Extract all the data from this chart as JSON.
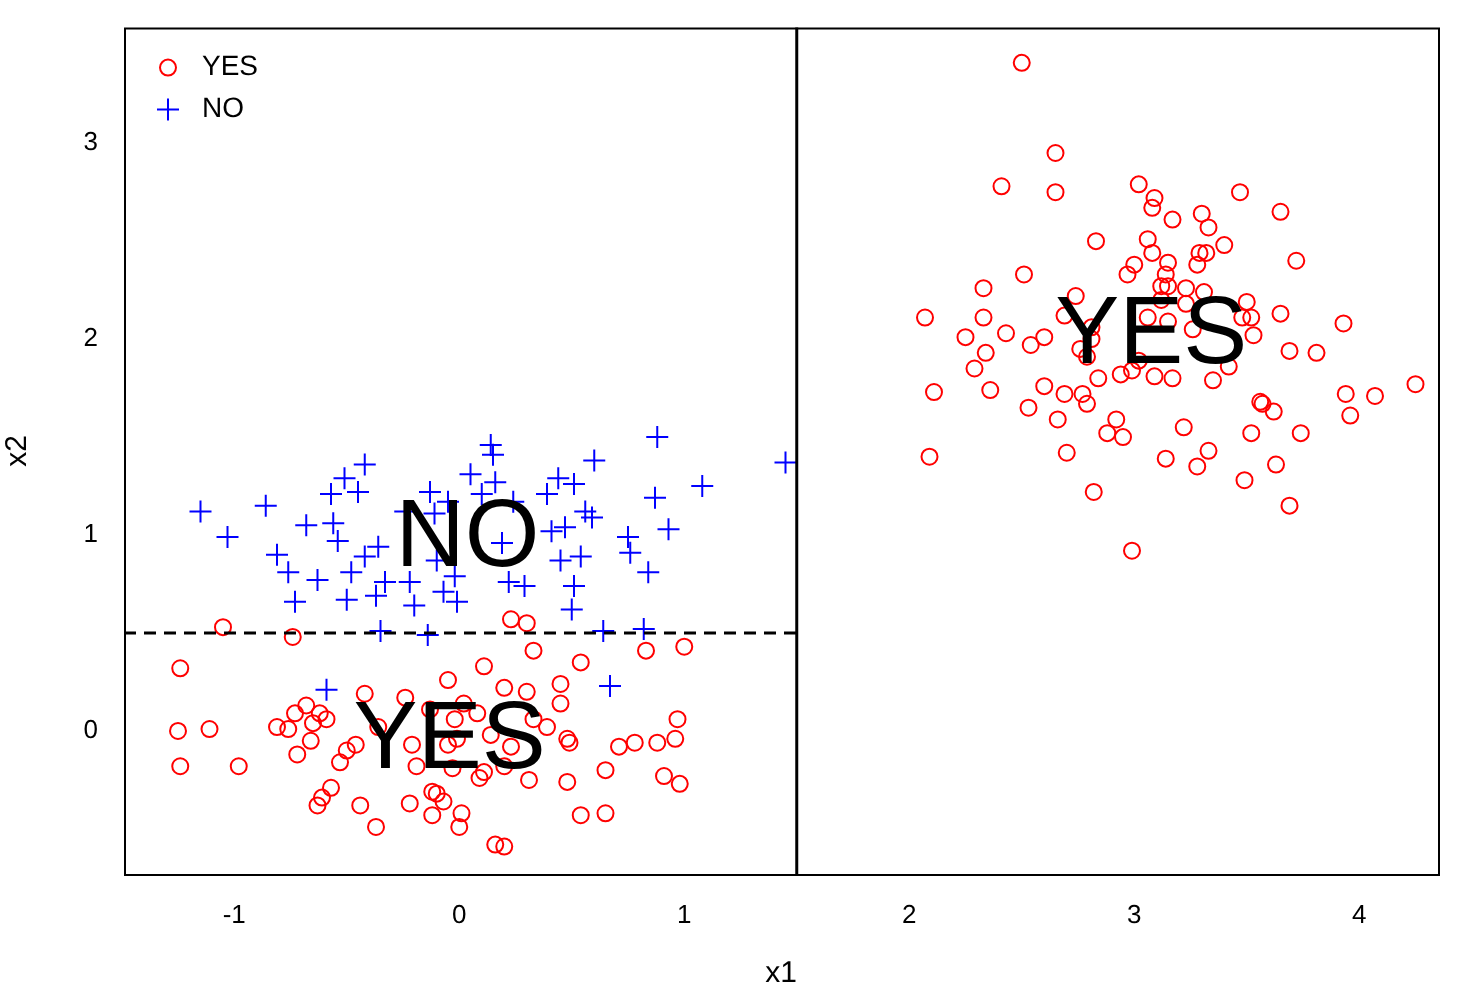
{
  "chart_data": {
    "type": "scatter",
    "xlabel": "x1",
    "ylabel": "x2",
    "xlim": [
      -1.49,
      4.35
    ],
    "ylim": [
      -0.73,
      3.59
    ],
    "xticks": [
      -1,
      0,
      1,
      2,
      3,
      4
    ],
    "yticks": [
      0,
      1,
      2,
      3
    ],
    "grid": false,
    "legend": "top left",
    "series": [
      {
        "name": "YES",
        "color": "#ff0000",
        "marker": "circle",
        "x": [
          -1.05,
          -0.74,
          0.23,
          0.3,
          0.33,
          0.54,
          0.83,
          1.0,
          -1.24,
          0.11,
          -0.05,
          0.2,
          0.45,
          0.3,
          0.45,
          -0.42,
          -0.24,
          -0.68,
          -0.62,
          -0.59,
          -0.73,
          -0.81,
          -0.76,
          -0.65,
          -1.25,
          -1.11,
          -0.36,
          -0.13,
          0.02,
          0.08,
          0.33,
          0.39,
          0.97,
          -0.02,
          0.14,
          -0.66,
          -0.72,
          -0.5,
          -0.46,
          -0.53,
          -0.21,
          -0.05,
          -0.01,
          0.23,
          0.48,
          0.49,
          0.71,
          0.78,
          0.88,
          0.96,
          -1.24,
          -0.98,
          -0.19,
          -0.03,
          0.11,
          0.09,
          0.2,
          0.31,
          0.48,
          0.65,
          0.91,
          0.98,
          -0.57,
          -0.61,
          -0.63,
          -0.44,
          -0.22,
          -0.12,
          -0.1,
          -0.07,
          -0.12,
          0.01,
          0.0,
          -0.37,
          0.54,
          0.65,
          0.16,
          0.2,
          2.5,
          2.65,
          2.41,
          2.65,
          3.02,
          3.09,
          3.08,
          3.17,
          3.3,
          3.33,
          3.47,
          3.65,
          2.83,
          3.06,
          3.08,
          3.29,
          3.32,
          3.28,
          3.4,
          3.72,
          3.0,
          2.97,
          3.15,
          3.14,
          3.12,
          3.15,
          3.12,
          3.23,
          3.31,
          3.23,
          3.5,
          2.51,
          2.33,
          2.74,
          2.07,
          2.33,
          3.65,
          3.48,
          3.52,
          3.93,
          2.69,
          3.06,
          3.15,
          3.26,
          3.53,
          2.25,
          2.43,
          2.6,
          2.54,
          2.81,
          2.81,
          2.76,
          2.79,
          2.34,
          2.29,
          3.02,
          2.99,
          2.94,
          2.84,
          3.09,
          3.17,
          3.35,
          3.42,
          3.69,
          3.81,
          2.11,
          2.36,
          2.6,
          2.69,
          2.77,
          2.79,
          2.53,
          2.66,
          2.92,
          2.88,
          2.95,
          3.22,
          3.56,
          3.57,
          3.62,
          3.52,
          3.74,
          3.94,
          3.96,
          4.07,
          4.25,
          2.09,
          2.7,
          3.14,
          3.33,
          3.28,
          3.63,
          3.49,
          3.69,
          2.82,
          2.99
        ],
        "values": [
          0.53,
          0.48,
          0.57,
          0.55,
          0.41,
          0.35,
          0.41,
          0.43,
          0.32,
          0.33,
          0.26,
          0.22,
          0.24,
          0.2,
          0.14,
          0.19,
          0.17,
          0.13,
          0.09,
          0.06,
          0.09,
          0.02,
          0.01,
          0.04,
          0.0,
          0.01,
          0.02,
          0.11,
          0.14,
          0.09,
          0.06,
          0.02,
          0.06,
          0.06,
          -0.02,
          -0.05,
          -0.12,
          -0.1,
          -0.07,
          -0.16,
          -0.07,
          -0.07,
          -0.04,
          -0.08,
          -0.04,
          -0.06,
          -0.08,
          -0.06,
          -0.06,
          -0.04,
          -0.18,
          -0.18,
          -0.18,
          -0.19,
          -0.21,
          -0.24,
          -0.18,
          -0.25,
          -0.26,
          -0.2,
          -0.23,
          -0.27,
          -0.29,
          -0.34,
          -0.38,
          -0.38,
          -0.37,
          -0.31,
          -0.32,
          -0.36,
          -0.43,
          -0.42,
          -0.49,
          -0.49,
          -0.43,
          -0.42,
          -0.58,
          -0.59,
          3.41,
          2.95,
          2.78,
          2.75,
          2.79,
          2.72,
          2.67,
          2.61,
          2.64,
          2.57,
          2.75,
          2.65,
          2.5,
          2.51,
          2.44,
          2.44,
          2.44,
          2.38,
          2.48,
          2.4,
          2.38,
          2.33,
          2.39,
          2.33,
          2.27,
          2.27,
          2.2,
          2.26,
          2.24,
          2.18,
          2.19,
          2.33,
          2.26,
          2.22,
          2.11,
          2.11,
          2.13,
          2.11,
          2.11,
          2.08,
          2.12,
          2.11,
          2.09,
          2.05,
          2.02,
          2.01,
          2.03,
          2.01,
          1.97,
          2.06,
          2.0,
          1.95,
          1.91,
          1.93,
          1.85,
          1.89,
          1.84,
          1.82,
          1.8,
          1.81,
          1.8,
          1.79,
          1.86,
          1.94,
          1.93,
          1.73,
          1.74,
          1.76,
          1.72,
          1.72,
          1.67,
          1.65,
          1.59,
          1.59,
          1.52,
          1.5,
          1.55,
          1.68,
          1.67,
          1.63,
          1.52,
          1.52,
          1.72,
          1.61,
          1.71,
          1.77,
          1.4,
          1.42,
          1.39,
          1.43,
          1.35,
          1.36,
          1.28,
          1.15,
          1.22,
          0.92
        ]
      },
      {
        "name": "NO",
        "color": "#0000ff",
        "marker": "cross",
        "x": [
          -1.15,
          -1.03,
          -0.86,
          -0.81,
          -0.76,
          -0.73,
          -0.68,
          -0.63,
          -0.57,
          -0.56,
          -0.54,
          -0.51,
          -0.48,
          -0.5,
          -0.45,
          -0.42,
          -0.42,
          -0.36,
          -0.37,
          -0.33,
          -0.35,
          -0.24,
          -0.22,
          -0.2,
          -0.14,
          -0.13,
          -0.11,
          -0.1,
          -0.07,
          -0.05,
          -0.02,
          -0.01,
          0.05,
          0.1,
          0.14,
          0.15,
          0.16,
          0.19,
          0.22,
          0.24,
          0.29,
          0.39,
          0.41,
          0.44,
          0.45,
          0.47,
          0.51,
          0.51,
          0.5,
          0.54,
          0.56,
          0.59,
          0.6,
          0.64,
          0.75,
          0.76,
          0.82,
          0.84,
          0.87,
          0.88,
          0.93,
          1.08,
          1.45,
          -0.59,
          0.67
        ],
        "values": [
          1.12,
          0.99,
          1.15,
          0.9,
          0.81,
          0.66,
          1.05,
          0.77,
          1.21,
          1.06,
          0.97,
          1.29,
          0.81,
          0.67,
          1.22,
          1.36,
          0.89,
          0.94,
          0.69,
          0.76,
          0.51,
          1.12,
          0.76,
          0.64,
          0.49,
          1.22,
          1.11,
          0.87,
          0.71,
          1.17,
          0.79,
          0.66,
          1.31,
          1.21,
          1.46,
          1.41,
          1.27,
          0.96,
          0.76,
          1.17,
          0.74,
          1.21,
          1.02,
          1.29,
          0.87,
          1.04,
          1.26,
          0.74,
          0.62,
          0.89,
          1.12,
          1.09,
          1.38,
          0.51,
          0.99,
          0.91,
          0.52,
          0.81,
          1.19,
          1.5,
          1.03,
          1.25,
          1.37,
          0.21,
          0.23
        ]
      }
    ],
    "ref_lines": [
      {
        "axis": "x",
        "value": 1.5,
        "color": "#000000",
        "line_style": "solid"
      },
      {
        "axis": "y",
        "value": 0.5,
        "color": "#000000",
        "line_style": "dashed"
      }
    ],
    "annotations": [
      "NO",
      "YES",
      "YES"
    ]
  }
}
